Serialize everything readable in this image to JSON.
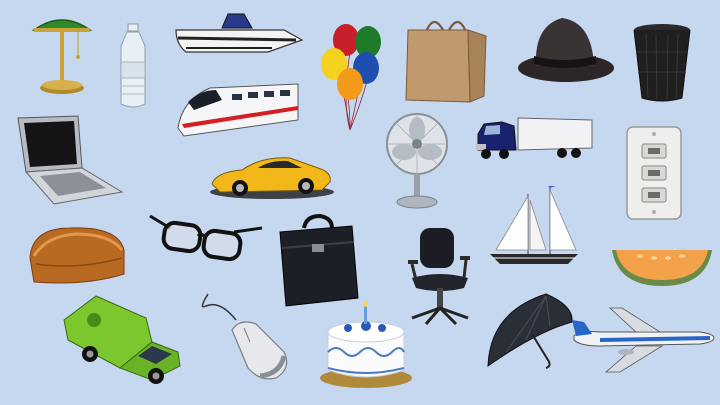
{
  "board": {
    "background": "#c6d8ef",
    "objects": [
      {
        "icon": "desk-lamp-icon"
      },
      {
        "icon": "water-bottle-icon"
      },
      {
        "icon": "speedboat-icon"
      },
      {
        "icon": "balloons-icon"
      },
      {
        "icon": "paper-bag-icon"
      },
      {
        "icon": "fedora-hat-icon"
      },
      {
        "icon": "trash-can-icon"
      },
      {
        "icon": "bullet-train-icon"
      },
      {
        "icon": "laptop-icon"
      },
      {
        "icon": "desk-fan-icon"
      },
      {
        "icon": "semi-truck-icon"
      },
      {
        "icon": "light-switch-icon"
      },
      {
        "icon": "sports-car-icon"
      },
      {
        "icon": "bread-loaf-icon"
      },
      {
        "icon": "eyeglasses-icon"
      },
      {
        "icon": "briefcase-icon"
      },
      {
        "icon": "office-chair-icon"
      },
      {
        "icon": "sailboat-icon"
      },
      {
        "icon": "cantaloupe-slice-icon"
      },
      {
        "icon": "delivery-van-icon"
      },
      {
        "icon": "computer-mouse-icon"
      },
      {
        "icon": "birthday-cake-icon"
      },
      {
        "icon": "umbrella-icon"
      },
      {
        "icon": "airplane-icon"
      }
    ]
  }
}
